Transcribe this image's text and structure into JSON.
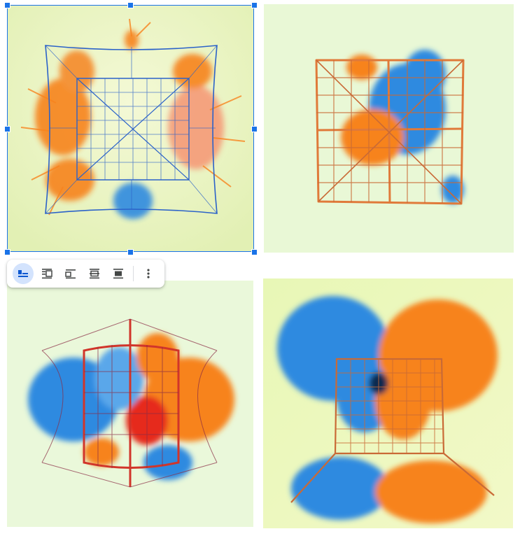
{
  "images": [
    {
      "name": "net-splash-image-1",
      "selected": true
    },
    {
      "name": "net-splash-image-2",
      "selected": false
    },
    {
      "name": "net-splash-image-3",
      "selected": false
    },
    {
      "name": "net-splash-image-4",
      "selected": false
    }
  ],
  "toolbar": {
    "buttons": [
      {
        "icon": "wrap-inline-icon",
        "active": true
      },
      {
        "icon": "wrap-text-icon",
        "active": false
      },
      {
        "icon": "break-text-icon",
        "active": false
      },
      {
        "icon": "behind-text-icon",
        "active": false
      },
      {
        "icon": "in-front-of-text-icon",
        "active": false
      }
    ],
    "more_icon": "more-vert-icon"
  },
  "colors": {
    "selection": "#1a73e8",
    "active_button": "#d3e3fd",
    "orange": "#f7831e",
    "blue": "#1e88e5",
    "lime_bg": "#eaf7c8"
  }
}
